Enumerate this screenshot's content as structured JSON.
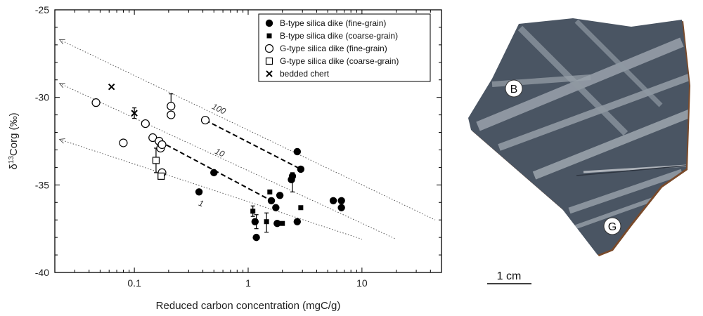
{
  "chart_data": {
    "type": "scatter",
    "xlabel": "Reduced carbon concentration (mgC/g)",
    "ylabel_main": "δ",
    "ylabel_sup": "13",
    "ylabel_rest": "Corg (‰)",
    "xscale": "log",
    "xlim": [
      0.02,
      50
    ],
    "ylim": [
      -40,
      -25
    ],
    "x_ticks": [
      {
        "value": 0.1,
        "label": "0.1"
      },
      {
        "value": 1,
        "label": "1"
      },
      {
        "value": 10,
        "label": "10"
      }
    ],
    "y_ticks": [
      {
        "value": -25,
        "label": "-25"
      },
      {
        "value": -30,
        "label": "-30"
      },
      {
        "value": -35,
        "label": "-35"
      },
      {
        "value": -40,
        "label": "-40"
      }
    ],
    "legend_position": "top-right",
    "series": [
      {
        "name": "B-type silica dike (fine-grain)",
        "marker": "filled-circle",
        "points": [
          {
            "x": 0.37,
            "y": -35.4
          },
          {
            "x": 0.5,
            "y": -34.3
          },
          {
            "x": 1.15,
            "y": -37.1
          },
          {
            "x": 1.18,
            "y": -38.0
          },
          {
            "x": 1.6,
            "y": -35.9
          },
          {
            "x": 1.75,
            "y": -36.3
          },
          {
            "x": 1.8,
            "y": -37.2
          },
          {
            "x": 1.9,
            "y": -35.6
          },
          {
            "x": 2.4,
            "y": -34.7
          },
          {
            "x": 2.45,
            "y": -34.5
          },
          {
            "x": 2.7,
            "y": -33.1
          },
          {
            "x": 2.7,
            "y": -37.1
          },
          {
            "x": 2.9,
            "y": -34.1
          },
          {
            "x": 5.6,
            "y": -35.9
          },
          {
            "x": 6.6,
            "y": -35.9
          },
          {
            "x": 6.6,
            "y": -36.3
          }
        ]
      },
      {
        "name": "B-type silica dike (coarse-grain)",
        "marker": "filled-square",
        "points": [
          {
            "x": 1.1,
            "y": -36.5
          },
          {
            "x": 1.45,
            "y": -37.1
          },
          {
            "x": 1.55,
            "y": -35.4
          },
          {
            "x": 2.0,
            "y": -37.2
          },
          {
            "x": 2.9,
            "y": -36.3
          }
        ]
      },
      {
        "name": "G-type silica dike (fine-grain)",
        "marker": "open-circle",
        "points": [
          {
            "x": 0.046,
            "y": -30.3
          },
          {
            "x": 0.08,
            "y": -32.6
          },
          {
            "x": 0.125,
            "y": -31.5
          },
          {
            "x": 0.145,
            "y": -32.3
          },
          {
            "x": 0.165,
            "y": -32.5
          },
          {
            "x": 0.17,
            "y": -32.9
          },
          {
            "x": 0.175,
            "y": -32.7
          },
          {
            "x": 0.175,
            "y": -34.3
          },
          {
            "x": 0.21,
            "y": -30.5
          },
          {
            "x": 0.21,
            "y": -31.0
          },
          {
            "x": 0.42,
            "y": -31.3
          }
        ]
      },
      {
        "name": "G-type silica dike (coarse-grain)",
        "marker": "open-square",
        "points": [
          {
            "x": 0.155,
            "y": -33.6
          },
          {
            "x": 0.172,
            "y": -34.5
          }
        ]
      },
      {
        "name": "bedded chert",
        "marker": "cross",
        "points": [
          {
            "x": 0.063,
            "y": -29.4
          },
          {
            "x": 0.1,
            "y": -30.9
          }
        ]
      }
    ],
    "error_bars": [
      {
        "x": 0.21,
        "y_low": -30.5,
        "y_high": -29.8
      },
      {
        "x": 0.155,
        "y_low": -34.3,
        "y_high": -32.9
      },
      {
        "x": 0.1,
        "y_low": -31.2,
        "y_high": -30.6
      },
      {
        "x": 1.1,
        "y_low": -36.8,
        "y_high": -36.2
      },
      {
        "x": 1.18,
        "y_low": -37.5,
        "y_high": -36.7
      },
      {
        "x": 1.45,
        "y_low": -37.7,
        "y_high": -36.6
      },
      {
        "x": 2.45,
        "y_low": -35.4,
        "y_high": -34.3
      }
    ],
    "trend_lines": [
      {
        "x1": 0.42,
        "y1": -31.3,
        "x2": 2.9,
        "y2": -34.1
      },
      {
        "x1": 0.145,
        "y1": -32.3,
        "x2": 1.6,
        "y2": -35.9
      }
    ],
    "mixing_lines": [
      {
        "label": "100",
        "x1": 0.022,
        "y1": -26.7,
        "x2": 44,
        "y2": -37.0,
        "label_x": 0.54,
        "label_y": -30.8
      },
      {
        "label": "10",
        "x1": 0.022,
        "y1": -29.2,
        "x2": 20,
        "y2": -38.1,
        "label_x": 0.55,
        "label_y": -33.3
      },
      {
        "label": "1",
        "x1": 0.022,
        "y1": -32.4,
        "x2": 10,
        "y2": -38.1,
        "label_x": 0.38,
        "label_y": -36.2
      }
    ]
  },
  "photo": {
    "label_b": "B",
    "label_g": "G",
    "scale_label": "1 cm",
    "colors": {
      "slate": "#4a5563",
      "vein": "#9aa2ab",
      "edge": "#7a4a2a"
    }
  }
}
